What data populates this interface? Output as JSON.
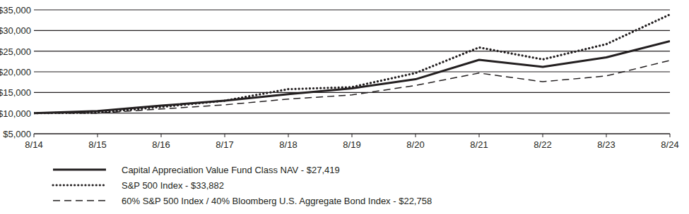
{
  "chart_data": {
    "type": "line",
    "categories": [
      "8/14",
      "8/15",
      "8/16",
      "8/17",
      "8/18",
      "8/19",
      "8/20",
      "8/21",
      "8/22",
      "8/23",
      "8/24"
    ],
    "series": [
      {
        "name": "Capital Appreciation Value Fund Class NAV - $27,419",
        "color": "#231f20",
        "line_style": "solid",
        "values": [
          10000,
          10500,
          11800,
          13000,
          14600,
          16000,
          18200,
          22900,
          21200,
          23500,
          27419
        ]
      },
      {
        "name": "S&P 500 Index - $33,882",
        "color": "#231f20",
        "line_style": "dotted",
        "values": [
          10000,
          10100,
          11500,
          13000,
          15800,
          16300,
          19700,
          25900,
          23000,
          26700,
          33882
        ]
      },
      {
        "name": "60% S&P 500 Index / 40% Bloomberg U.S. Aggregate Bond Index - $22,758",
        "color": "#231f20",
        "line_style": "dashed",
        "values": [
          10000,
          10000,
          11000,
          12000,
          13400,
          14400,
          16700,
          19700,
          17600,
          19000,
          22758
        ]
      }
    ],
    "ylim": [
      5000,
      35000
    ],
    "yticks": [
      {
        "value": 5000,
        "label": "$5,000"
      },
      {
        "value": 10000,
        "label": "$10,000"
      },
      {
        "value": 15000,
        "label": "$15,000"
      },
      {
        "value": 20000,
        "label": "$20,000"
      },
      {
        "value": 25000,
        "label": "$25,000"
      },
      {
        "value": 30000,
        "label": "$30,000"
      },
      {
        "value": 35000,
        "label": "$35,000"
      }
    ],
    "grid": true,
    "legend": "bottom-left"
  }
}
